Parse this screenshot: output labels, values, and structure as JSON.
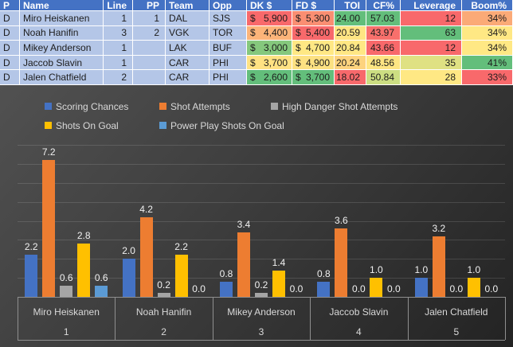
{
  "table": {
    "columns": [
      {
        "key": "position",
        "label": "P",
        "align": "left"
      },
      {
        "key": "name",
        "label": "Name",
        "align": "left"
      },
      {
        "key": "line",
        "label": "Line",
        "align": "right"
      },
      {
        "key": "pp",
        "label": "PP",
        "align": "right"
      },
      {
        "key": "team",
        "label": "Team",
        "align": "left"
      },
      {
        "key": "opp",
        "label": "Opp",
        "align": "left"
      },
      {
        "key": "dk-salary",
        "label": "DK $",
        "align": "money"
      },
      {
        "key": "fd-salary",
        "label": "FD $",
        "align": "money"
      },
      {
        "key": "toi",
        "label": "TOI",
        "align": "right"
      },
      {
        "key": "cf-pct",
        "label": "CF%",
        "align": "right"
      },
      {
        "key": "leverage",
        "label": "Leverage",
        "align": "right"
      },
      {
        "key": "boom-pct",
        "label": "Boom%",
        "align": "right"
      }
    ],
    "default_cell_bg": "#B4C6E7",
    "header_bg": "#4472C4",
    "rows": [
      {
        "cells": [
          {
            "v": "D"
          },
          {
            "v": "Miro Heiskanen"
          },
          {
            "v": "1"
          },
          {
            "v": "1"
          },
          {
            "v": "DAL"
          },
          {
            "v": "SJS"
          },
          {
            "cur": "$",
            "v": "5,900",
            "bg": "#F8696B"
          },
          {
            "cur": "$",
            "v": "5,300",
            "bg": "#FA8E72"
          },
          {
            "v": "24.00",
            "bg": "#63BE7B"
          },
          {
            "v": "57.03",
            "bg": "#63BE7B"
          },
          {
            "v": "12",
            "bg": "#F8696B"
          },
          {
            "v": "34%",
            "bg": "#FBAA77"
          }
        ]
      },
      {
        "cells": [
          {
            "v": "D"
          },
          {
            "v": "Noah Hanifin"
          },
          {
            "v": "3"
          },
          {
            "v": "2"
          },
          {
            "v": "VGK"
          },
          {
            "v": "TOR"
          },
          {
            "cur": "$",
            "v": "4,400",
            "bg": "#FCB479"
          },
          {
            "cur": "$",
            "v": "5,400",
            "bg": "#F8696B"
          },
          {
            "v": "20.59",
            "bg": "#FFE583"
          },
          {
            "v": "43.97",
            "bg": "#F8706C"
          },
          {
            "v": "63",
            "bg": "#63BE7B"
          },
          {
            "v": "34%",
            "bg": "#FFE884"
          }
        ]
      },
      {
        "cells": [
          {
            "v": "D"
          },
          {
            "v": "Mikey Anderson"
          },
          {
            "v": "1"
          },
          {
            "v": ""
          },
          {
            "v": "LAK"
          },
          {
            "v": "BUF"
          },
          {
            "cur": "$",
            "v": "3,000",
            "bg": "#85C87D"
          },
          {
            "cur": "$",
            "v": "4,700",
            "bg": "#FFE884"
          },
          {
            "v": "20.84",
            "bg": "#FFE784"
          },
          {
            "v": "43.66",
            "bg": "#F8696B"
          },
          {
            "v": "12",
            "bg": "#F8696B"
          },
          {
            "v": "34%",
            "bg": "#FFE884"
          }
        ]
      },
      {
        "cells": [
          {
            "v": "D"
          },
          {
            "v": "Jaccob Slavin"
          },
          {
            "v": "1"
          },
          {
            "v": ""
          },
          {
            "v": "CAR"
          },
          {
            "v": "PHI"
          },
          {
            "cur": "$",
            "v": "3,700",
            "bg": "#FFE283"
          },
          {
            "cur": "$",
            "v": "4,900",
            "bg": "#FCE182"
          },
          {
            "v": "20.24",
            "bg": "#FDD37E"
          },
          {
            "v": "48.56",
            "bg": "#FEE583"
          },
          {
            "v": "35",
            "bg": "#DFE183"
          },
          {
            "v": "41%",
            "bg": "#63BE7B"
          }
        ]
      },
      {
        "cells": [
          {
            "v": "D"
          },
          {
            "v": "Jalen Chatfield"
          },
          {
            "v": "2"
          },
          {
            "v": ""
          },
          {
            "v": "CAR"
          },
          {
            "v": "PHI"
          },
          {
            "cur": "$",
            "v": "2,600",
            "bg": "#63BE7B"
          },
          {
            "cur": "$",
            "v": "3,700",
            "bg": "#63BE7B"
          },
          {
            "v": "18.02",
            "bg": "#F8696B"
          },
          {
            "v": "50.84",
            "bg": "#CCDE82"
          },
          {
            "v": "28",
            "bg": "#FFE884"
          },
          {
            "v": "33%",
            "bg": "#F8696B"
          }
        ]
      }
    ]
  },
  "chart_data": {
    "type": "bar",
    "title": "",
    "categories": [
      "Miro Heiskanen",
      "Noah Hanifin",
      "Mikey Anderson",
      "Jaccob Slavin",
      "Jalen Chatfield"
    ],
    "category_indices": [
      "1",
      "2",
      "3",
      "4",
      "5"
    ],
    "series": [
      {
        "name": "Scoring Chances",
        "color": "#4472C4",
        "values": [
          2.2,
          2.0,
          0.8,
          0.8,
          1.0
        ]
      },
      {
        "name": "Shot Attempts",
        "color": "#ED7D31",
        "values": [
          7.2,
          4.2,
          3.4,
          3.6,
          3.2
        ]
      },
      {
        "name": "High Danger Shot Attempts",
        "color": "#A5A5A5",
        "values": [
          0.6,
          0.2,
          0.2,
          0.0,
          0.0
        ]
      },
      {
        "name": "Shots On Goal",
        "color": "#FFC000",
        "values": [
          2.8,
          2.2,
          1.4,
          1.0,
          1.0
        ]
      },
      {
        "name": "Power Play Shots On Goal",
        "color": "#5B9BD5",
        "values": [
          0.6,
          0.0,
          0.0,
          0.0,
          0.0
        ]
      }
    ],
    "ylim": [
      0,
      8
    ],
    "gridline_step": 1,
    "grid": true,
    "data_labels": true,
    "legend_position": "top-left",
    "background": "dark-gradient",
    "text_color": "#D9D9D9"
  }
}
